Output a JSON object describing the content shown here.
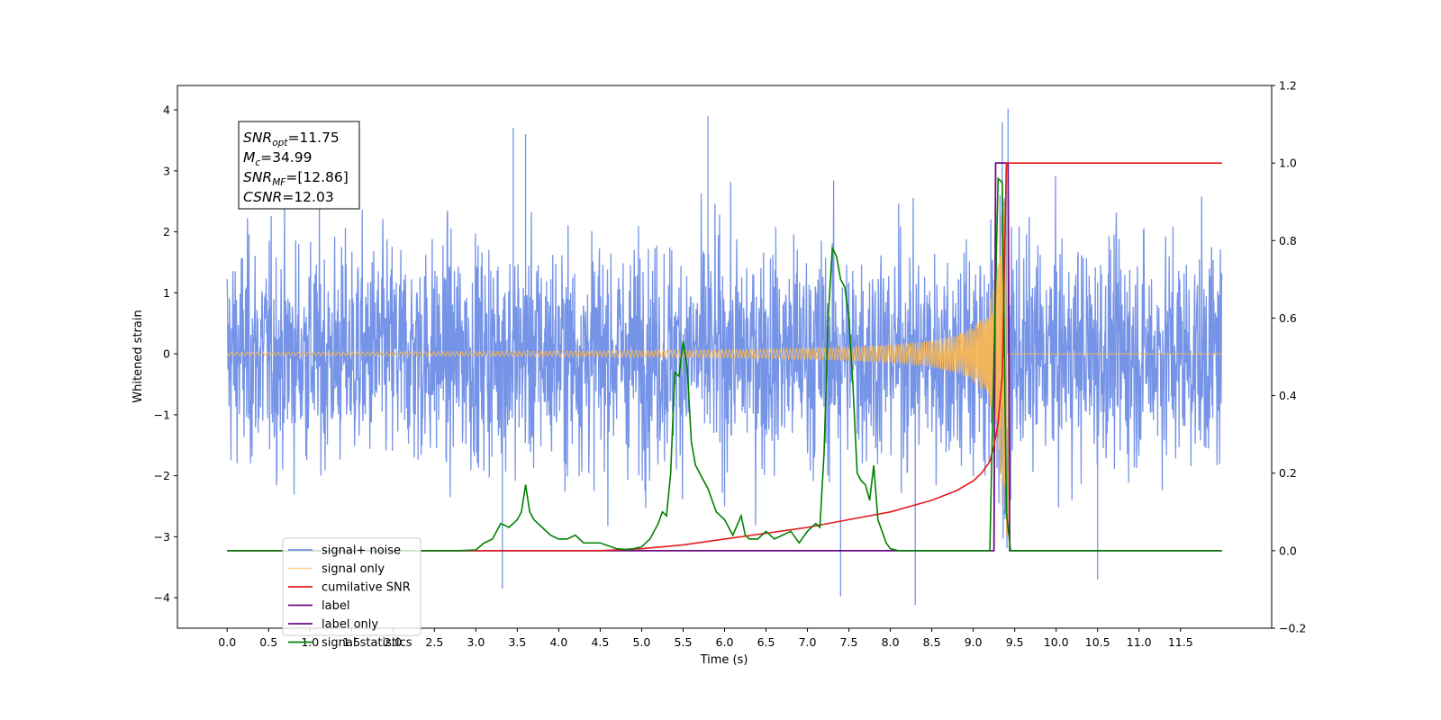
{
  "chart_data": {
    "type": "line",
    "xlabel": "Time (s)",
    "ylabel": "Whitened strain",
    "xlim": [
      -0.6,
      12.6
    ],
    "ylim_left": [
      -4.5,
      4.4
    ],
    "ylim_right": [
      -0.2,
      1.2
    ],
    "x_ticks": [
      "0.0",
      "0.5",
      "1.0",
      "1.5",
      "2.0",
      "2.5",
      "3.0",
      "3.5",
      "4.0",
      "4.5",
      "5.0",
      "5.5",
      "6.0",
      "6.5",
      "7.0",
      "7.5",
      "8.0",
      "8.5",
      "9.0",
      "9.5",
      "10.0",
      "10.5",
      "11.0",
      "11.5"
    ],
    "y_ticks_left": [
      "−4",
      "−3",
      "−2",
      "−1",
      "0",
      "1",
      "2",
      "3",
      "4"
    ],
    "y_ticks_right": [
      "−0.2",
      "0.0",
      "0.2",
      "0.4",
      "0.6",
      "0.8",
      "1.0",
      "1.2"
    ],
    "grid": false,
    "legend_position": "bottom-left",
    "annotation": {
      "lines": [
        {
          "base": "SNR",
          "sub": "opt",
          "value": "=11.75"
        },
        {
          "base": "M",
          "sub": "c",
          "value": "=34.99"
        },
        {
          "base": "SNR",
          "sub": "MF",
          "value": "=[12.86]"
        },
        {
          "base": "CSNR",
          "sub": "",
          "value": "=12.03"
        }
      ]
    },
    "series": [
      {
        "name": "signal+ noise",
        "axis": "left",
        "color": "#6f8ee6",
        "description_values": {
          "x_range": [
            0.0,
            12.0
          ],
          "approx_std": 1.0,
          "max": 4.02,
          "min": -4.12,
          "notable_peaks": [
            [
              3.45,
              3.7
            ],
            [
              3.6,
              3.6
            ],
            [
              5.8,
              3.9
            ],
            [
              9.35,
              3.8
            ],
            [
              9.42,
              4.02
            ]
          ],
          "notable_troughs": [
            [
              3.32,
              -3.85
            ],
            [
              7.4,
              -3.98
            ],
            [
              8.3,
              -4.12
            ],
            [
              10.5,
              -3.7
            ]
          ]
        }
      },
      {
        "name": "signal only",
        "axis": "left",
        "color": "#ffb84d",
        "chirp": {
          "start": 0.0,
          "end": 9.42,
          "merger": 9.38,
          "peak_amp": 3.1,
          "post_merger_zero": true
        }
      },
      {
        "name": "cumilative SNR",
        "axis": "right",
        "color": "#e41a1c",
        "x": [
          0.0,
          4.5,
          5.0,
          5.5,
          6.0,
          6.5,
          7.0,
          7.5,
          8.0,
          8.5,
          8.8,
          9.0,
          9.1,
          9.2,
          9.25,
          9.3,
          9.35,
          9.4,
          9.45,
          12.0
        ],
        "y": [
          0.0,
          0.0,
          0.005,
          0.015,
          0.03,
          0.045,
          0.06,
          0.08,
          0.1,
          0.13,
          0.155,
          0.18,
          0.2,
          0.23,
          0.27,
          0.33,
          0.45,
          1.0,
          1.0,
          1.0
        ]
      },
      {
        "name": "label",
        "axis": "right",
        "color": "#6a0d83",
        "x": [
          0.0,
          9.25,
          9.27,
          9.42,
          9.44,
          12.0
        ],
        "y": [
          0.0,
          0.0,
          1.0,
          1.0,
          0.0,
          0.0
        ]
      },
      {
        "name": "label only",
        "axis": "right",
        "color": "#6a0d83",
        "hidden_behind_legend": true,
        "x": [],
        "y": []
      },
      {
        "name": "signal statistics",
        "axis": "right",
        "color": "#008000",
        "x": [
          0.0,
          2.8,
          3.0,
          3.1,
          3.2,
          3.3,
          3.4,
          3.5,
          3.55,
          3.6,
          3.65,
          3.7,
          3.8,
          3.9,
          4.0,
          4.1,
          4.2,
          4.3,
          4.5,
          4.7,
          4.8,
          4.9,
          5.0,
          5.1,
          5.2,
          5.25,
          5.3,
          5.35,
          5.4,
          5.45,
          5.5,
          5.55,
          5.6,
          5.65,
          5.7,
          5.8,
          5.9,
          6.0,
          6.1,
          6.2,
          6.25,
          6.3,
          6.4,
          6.5,
          6.6,
          6.7,
          6.8,
          6.9,
          7.0,
          7.1,
          7.15,
          7.2,
          7.25,
          7.3,
          7.35,
          7.4,
          7.45,
          7.5,
          7.55,
          7.6,
          7.65,
          7.7,
          7.75,
          7.8,
          7.85,
          7.9,
          7.95,
          8.0,
          8.1,
          8.2,
          9.0,
          9.1,
          9.2,
          9.25,
          9.3,
          9.35,
          9.4,
          9.45,
          9.5,
          12.0
        ],
        "y": [
          0.0,
          0.0,
          0.002,
          0.02,
          0.03,
          0.07,
          0.06,
          0.08,
          0.1,
          0.17,
          0.1,
          0.08,
          0.06,
          0.04,
          0.03,
          0.03,
          0.04,
          0.02,
          0.02,
          0.005,
          0.003,
          0.005,
          0.01,
          0.03,
          0.07,
          0.1,
          0.09,
          0.2,
          0.46,
          0.45,
          0.54,
          0.47,
          0.28,
          0.22,
          0.2,
          0.16,
          0.1,
          0.08,
          0.04,
          0.09,
          0.04,
          0.03,
          0.03,
          0.05,
          0.03,
          0.04,
          0.05,
          0.02,
          0.05,
          0.07,
          0.06,
          0.25,
          0.6,
          0.78,
          0.76,
          0.7,
          0.68,
          0.6,
          0.42,
          0.2,
          0.18,
          0.17,
          0.13,
          0.22,
          0.08,
          0.05,
          0.02,
          0.005,
          0.0,
          0.0,
          0.0,
          0.0,
          0.0,
          0.5,
          0.96,
          0.95,
          0.1,
          0.0,
          0.0,
          0.0
        ]
      }
    ]
  }
}
